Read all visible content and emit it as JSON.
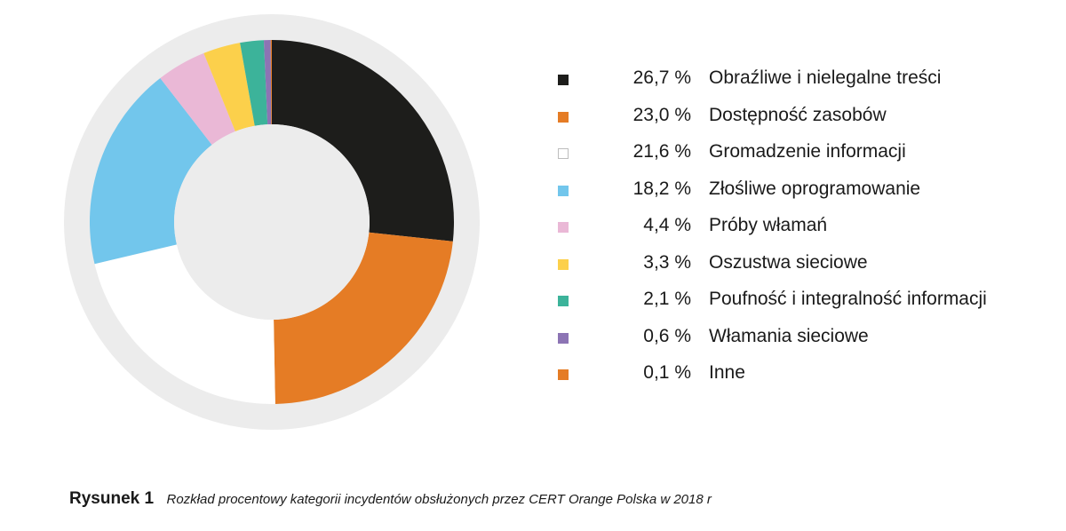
{
  "chart_data": {
    "type": "pie",
    "title": "",
    "values": [
      26.7,
      23.0,
      21.6,
      18.2,
      4.4,
      3.3,
      2.1,
      0.6,
      0.1
    ],
    "value_labels": [
      "26,7 %",
      "23,0 %",
      "21,6 %",
      "18,2 %",
      "4,4 %",
      "3,3 %",
      "2,1 %",
      "0,6 %",
      "0,1 %"
    ],
    "categories": [
      "Obraźliwe i nielegalne treści",
      "Dostępność zasobów",
      "Gromadzenie informacji",
      "Złośliwe oprogramowanie",
      "Próby włamań",
      "Oszustwa sieciowe",
      "Poufność i integralność informacji",
      "Włamania sieciowe",
      "Inne"
    ],
    "colors": [
      "#1d1d1b",
      "#e57c25",
      "#ffffff",
      "#72c6ec",
      "#eab8d6",
      "#fcd04b",
      "#3cb39a",
      "#8c74b4",
      "#e57c25"
    ],
    "style": "donut",
    "legend_position": "right"
  },
  "caption": {
    "number": "Rysunek 1",
    "text": "Rozkład procentowy kategorii incydentów obsłużonych przez CERT Orange Polska w 2018 r"
  }
}
